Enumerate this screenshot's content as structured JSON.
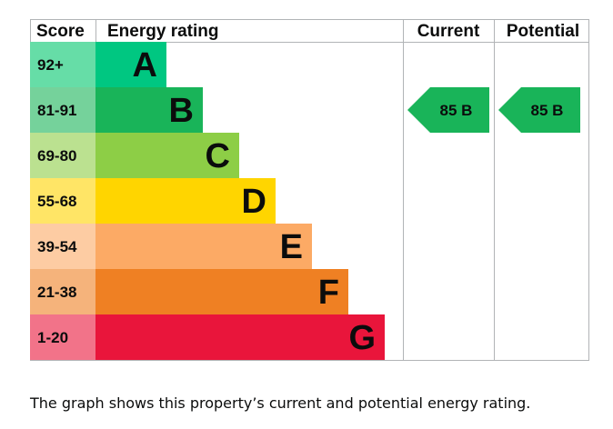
{
  "chart_data": {
    "type": "bar",
    "headers": {
      "score": "Score",
      "rating": "Energy rating",
      "current": "Current",
      "potential": "Potential"
    },
    "bands": [
      {
        "score": "92+",
        "letter": "A",
        "color": "#00c781",
        "score_bg": "#66dda7"
      },
      {
        "score": "81-91",
        "letter": "B",
        "color": "#19b459",
        "score_bg": "#75d29b"
      },
      {
        "score": "69-80",
        "letter": "C",
        "color": "#8dce46",
        "score_bg": "#bbe190"
      },
      {
        "score": "55-68",
        "letter": "D",
        "color": "#ffd500",
        "score_bg": "#ffe566"
      },
      {
        "score": "39-54",
        "letter": "E",
        "color": "#fcaa65",
        "score_bg": "#fdcca3"
      },
      {
        "score": "21-38",
        "letter": "F",
        "color": "#ef8023",
        "score_bg": "#f5b37b"
      },
      {
        "score": "1-20",
        "letter": "G",
        "color": "#e9153b",
        "score_bg": "#f27389"
      }
    ],
    "current": {
      "value": 85,
      "letter": "B",
      "label": "85  B",
      "color": "#19b459"
    },
    "potential": {
      "value": 85,
      "letter": "B",
      "label": "85  B",
      "color": "#19b459"
    }
  },
  "caption": "The graph shows this property’s current and potential energy rating."
}
